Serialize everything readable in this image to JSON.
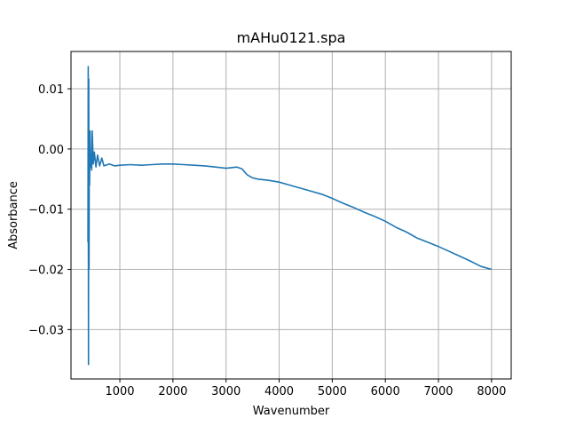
{
  "chart_data": {
    "type": "line",
    "title": "mAHu0121.spa",
    "xlabel": "Wavenumber",
    "ylabel": "Absorbance",
    "xlim": [
      80,
      8370
    ],
    "ylim": [
      -0.0382,
      0.0162
    ],
    "x_ticks": [
      1000,
      2000,
      3000,
      4000,
      5000,
      6000,
      7000,
      8000
    ],
    "y_ticks": [
      -0.03,
      -0.02,
      -0.01,
      0.0,
      0.01
    ],
    "x_tick_labels": [
      "1000",
      "2000",
      "3000",
      "4000",
      "5000",
      "6000",
      "7000",
      "8000"
    ],
    "y_tick_labels": [
      "−0.03",
      "−0.02",
      "−0.01",
      "0.00",
      "0.01"
    ],
    "grid": true,
    "color": "#1f77b4",
    "series": [
      {
        "x": [
          400,
          405,
          410,
          415,
          420,
          425,
          430,
          440,
          450,
          460,
          470,
          480,
          500,
          520,
          550,
          580,
          620,
          660,
          700,
          800,
          900,
          1000,
          1200,
          1400,
          1600,
          1800,
          2000,
          2200,
          2400,
          2600,
          2800,
          3000,
          3100,
          3200,
          3300,
          3400,
          3500,
          3600,
          3800,
          4000,
          4200,
          4400,
          4600,
          4800,
          5000,
          5200,
          5400,
          5600,
          5800,
          6000,
          6200,
          6400,
          6600,
          6800,
          7000,
          7200,
          7400,
          7600,
          7800,
          8000
        ],
        "y": [
          -0.0155,
          0.0137,
          -0.0358,
          0.0116,
          -0.02,
          0.002,
          -0.006,
          0.003,
          -0.003,
          -0.001,
          -0.0035,
          0.003,
          -0.0025,
          -0.0005,
          -0.003,
          -0.001,
          -0.0028,
          -0.0015,
          -0.0028,
          -0.0025,
          -0.0028,
          -0.0027,
          -0.0026,
          -0.0027,
          -0.0026,
          -0.0025,
          -0.0025,
          -0.0026,
          -0.0027,
          -0.0028,
          -0.003,
          -0.0032,
          -0.0031,
          -0.003,
          -0.0033,
          -0.0043,
          -0.0048,
          -0.005,
          -0.0052,
          -0.0055,
          -0.006,
          -0.0065,
          -0.007,
          -0.0075,
          -0.0082,
          -0.009,
          -0.0097,
          -0.0105,
          -0.0112,
          -0.012,
          -0.013,
          -0.0138,
          -0.0148,
          -0.0155,
          -0.0162,
          -0.017,
          -0.0178,
          -0.0186,
          -0.0195,
          -0.02
        ]
      }
    ]
  }
}
